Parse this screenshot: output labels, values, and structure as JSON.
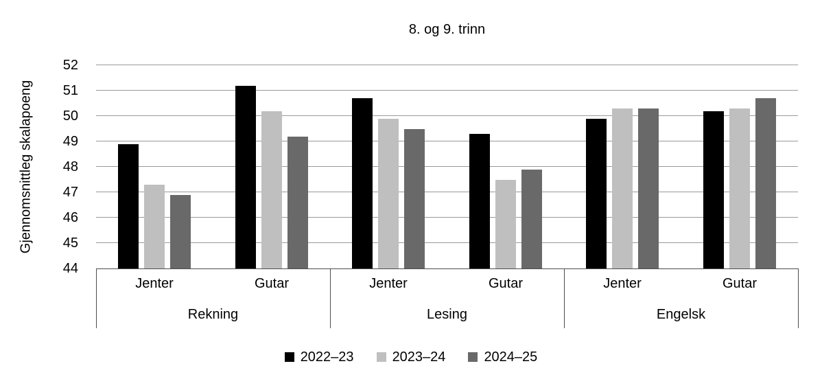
{
  "chart_data": {
    "type": "bar",
    "title": "8. og 9. trinn",
    "ylabel": "Gjennomsnittleg skalapoeng",
    "ylim": [
      44,
      52
    ],
    "yticks": [
      52,
      51,
      50,
      49,
      48,
      47,
      46,
      45,
      44
    ],
    "grid": true,
    "legend_position": "bottom",
    "gridline_color": "#999999",
    "axis_color": "#4d4d4d",
    "series": [
      {
        "name": "2022–23",
        "color": "#000000"
      },
      {
        "name": "2023–24",
        "color": "#bfbfbf"
      },
      {
        "name": "2024–25",
        "color": "#696969"
      }
    ],
    "groups": [
      {
        "label": "Rekning",
        "subgroups": [
          {
            "label": "Jenter",
            "values": [
              48.9,
              47.3,
              46.9
            ]
          },
          {
            "label": "Gutar",
            "values": [
              51.2,
              50.2,
              49.2
            ]
          }
        ]
      },
      {
        "label": "Lesing",
        "subgroups": [
          {
            "label": "Jenter",
            "values": [
              50.7,
              49.9,
              49.5
            ]
          },
          {
            "label": "Gutar",
            "values": [
              49.3,
              47.5,
              47.9
            ]
          }
        ]
      },
      {
        "label": "Engelsk",
        "subgroups": [
          {
            "label": "Jenter",
            "values": [
              49.9,
              50.3,
              50.3
            ]
          },
          {
            "label": "Gutar",
            "values": [
              50.2,
              50.3,
              50.7
            ]
          }
        ]
      }
    ]
  }
}
